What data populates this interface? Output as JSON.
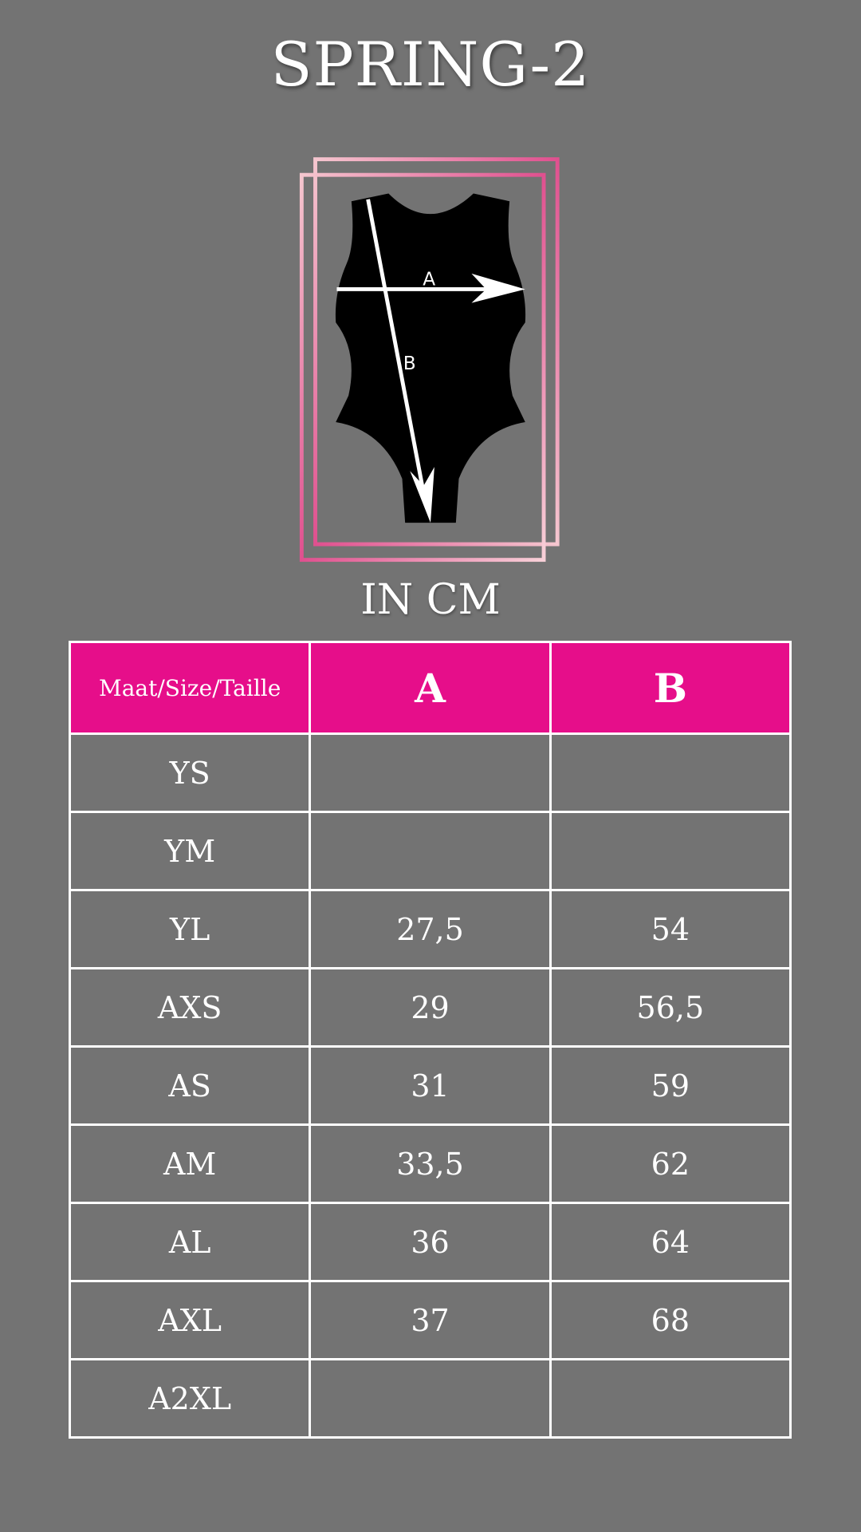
{
  "title": "SPRING-2",
  "diagram": {
    "label_a": "A",
    "label_b": "B",
    "frame_color": "#e0508f",
    "garment_color": "#000000"
  },
  "unit": "IN CM",
  "table": {
    "header_color": "#e60e8a",
    "headers": [
      "Maat/Size/Taille",
      "A",
      "B"
    ],
    "rows": [
      {
        "size": "YS",
        "a": "",
        "b": ""
      },
      {
        "size": "YM",
        "a": "",
        "b": ""
      },
      {
        "size": "YL",
        "a": "27,5",
        "b": "54"
      },
      {
        "size": "AXS",
        "a": "29",
        "b": "56,5"
      },
      {
        "size": "AS",
        "a": "31",
        "b": "59"
      },
      {
        "size": "AM",
        "a": "33,5",
        "b": "62"
      },
      {
        "size": "AL",
        "a": "36",
        "b": "64"
      },
      {
        "size": "AXL",
        "a": "37",
        "b": "68"
      },
      {
        "size": "A2XL",
        "a": "",
        "b": ""
      }
    ]
  }
}
